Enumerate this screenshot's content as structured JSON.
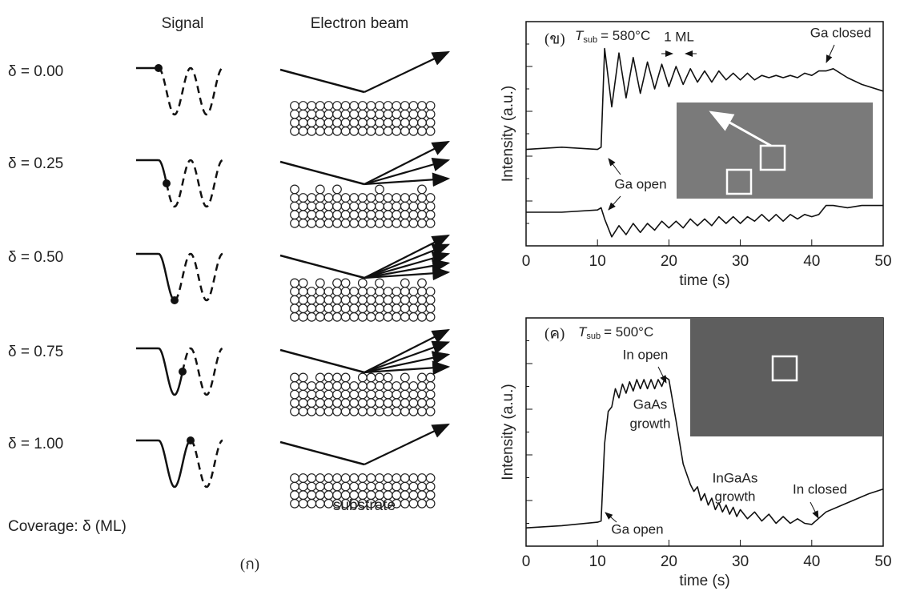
{
  "left": {
    "signal_header": "Signal",
    "beam_header": "Electron beam",
    "rows": [
      {
        "label": "δ = 0.00",
        "coverage": 0.0
      },
      {
        "label": "δ = 0.25",
        "coverage": 0.25
      },
      {
        "label": "δ = 0.50",
        "coverage": 0.5
      },
      {
        "label": "δ = 0.75",
        "coverage": 0.75
      },
      {
        "label": "δ = 1.00",
        "coverage": 1.0
      }
    ],
    "coverage_label": "Coverage: δ (ML)",
    "substrate_label": "substrate",
    "panel_label": "(ก)"
  },
  "chart_data": [
    {
      "type": "line",
      "panel_label": "(ข)",
      "temp_symbol": "T",
      "temp_subscript": "sub",
      "temp_value": "= 580°C",
      "x_label": "time (s)",
      "y_label": "Intensity (a.u.)",
      "xlim": [
        0,
        50
      ],
      "xticks": [
        0,
        10,
        20,
        30,
        40,
        50
      ],
      "ylim": [
        0,
        10
      ],
      "annotations": [
        "1 ML",
        "Ga closed",
        "Ga open"
      ],
      "x": [
        0,
        5,
        10,
        10.5,
        11,
        12,
        13,
        14,
        15,
        16,
        17,
        18,
        19,
        20,
        21,
        22,
        23,
        24,
        25,
        26,
        27,
        28,
        29,
        30,
        31,
        32,
        33,
        34,
        35,
        36,
        37,
        38,
        39,
        40,
        41,
        42,
        43,
        45,
        47,
        50
      ],
      "series": [
        {
          "color": "#111111",
          "values": [
            4.3,
            4.4,
            4.3,
            4.4,
            8.8,
            6.2,
            8.6,
            6.6,
            8.4,
            6.8,
            8.2,
            7.0,
            8.1,
            7.1,
            8.0,
            7.2,
            7.9,
            7.3,
            7.8,
            7.3,
            7.8,
            7.4,
            7.7,
            7.4,
            7.7,
            7.4,
            7.6,
            7.5,
            7.6,
            7.5,
            7.6,
            7.5,
            7.7,
            7.6,
            7.8,
            7.8,
            7.9,
            7.5,
            7.2,
            6.9
          ]
        },
        {
          "color": "#111111",
          "values": [
            1.5,
            1.5,
            1.6,
            1.7,
            1.2,
            0.4,
            0.9,
            0.5,
            1.0,
            0.6,
            1.0,
            0.7,
            1.1,
            0.8,
            1.1,
            0.8,
            1.2,
            0.9,
            1.2,
            0.9,
            1.3,
            1.0,
            1.3,
            1.0,
            1.3,
            1.1,
            1.4,
            1.1,
            1.4,
            1.1,
            1.4,
            1.2,
            1.4,
            1.3,
            1.4,
            1.8,
            1.8,
            1.7,
            1.8,
            1.8
          ]
        }
      ]
    },
    {
      "type": "line",
      "panel_label": "(ค)",
      "temp_symbol": "T",
      "temp_subscript": "sub",
      "temp_value": "= 500°C",
      "x_label": "time (s)",
      "y_label": "Intensity (a.u.)",
      "xlim": [
        0,
        50
      ],
      "xticks": [
        0,
        10,
        20,
        30,
        40,
        50
      ],
      "ylim": [
        0,
        10
      ],
      "annotations": [
        "In open",
        [
          "GaAs",
          "growth"
        ],
        [
          "InGaAs",
          "growth"
        ],
        "In closed",
        "Ga open"
      ],
      "x": [
        0,
        5,
        10,
        10.5,
        11,
        11.5,
        12,
        12.5,
        13,
        13.5,
        14,
        14.5,
        15,
        15.5,
        16,
        16.5,
        17,
        17.5,
        18,
        18.5,
        19,
        19.5,
        20,
        21,
        22,
        23,
        23.5,
        24,
        24.5,
        25,
        25.5,
        26,
        26.5,
        27,
        27.5,
        28,
        28.5,
        29,
        29.5,
        30,
        31,
        32,
        33,
        34,
        35,
        36,
        37,
        38,
        39,
        40,
        42,
        45,
        48,
        50
      ],
      "series": [
        {
          "color": "#111111",
          "values": [
            0.8,
            0.9,
            1.05,
            1.1,
            4.5,
            5.9,
            6.1,
            6.9,
            6.5,
            7.1,
            6.7,
            7.2,
            6.8,
            7.3,
            6.9,
            7.3,
            6.9,
            7.3,
            6.9,
            7.3,
            7.0,
            7.4,
            7.3,
            5.5,
            3.6,
            2.7,
            2.4,
            2.6,
            2.0,
            2.3,
            1.8,
            2.1,
            1.6,
            1.9,
            1.5,
            1.8,
            1.4,
            1.7,
            1.3,
            1.6,
            1.2,
            1.5,
            1.1,
            1.4,
            1.0,
            1.3,
            1.0,
            1.2,
            1.0,
            0.95,
            1.5,
            1.9,
            2.3,
            2.5
          ]
        }
      ]
    }
  ]
}
